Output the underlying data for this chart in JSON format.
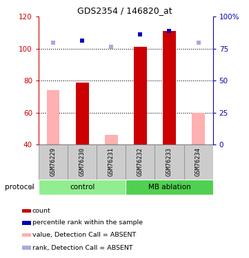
{
  "title": "GDS2354 / 146820_at",
  "samples": [
    "GSM76229",
    "GSM76230",
    "GSM76231",
    "GSM76232",
    "GSM76233",
    "GSM76234"
  ],
  "ylim_left": [
    40,
    120
  ],
  "ylim_right": [
    0,
    100
  ],
  "yticks_left": [
    40,
    60,
    80,
    100,
    120
  ],
  "yticks_right": [
    0,
    25,
    50,
    75,
    100
  ],
  "yticklabels_right": [
    "0",
    "25",
    "50",
    "75",
    "100%"
  ],
  "bar_base": 40,
  "red_bar_tops": [
    null,
    79,
    null,
    101,
    111,
    null
  ],
  "pink_bar_tops": [
    74,
    null,
    46,
    null,
    null,
    60
  ],
  "blue_square_y_left": [
    104,
    105,
    101,
    109,
    111,
    104
  ],
  "blue_square_absent": [
    true,
    false,
    true,
    false,
    false,
    true
  ],
  "protocol_groups": [
    {
      "label": "control",
      "samples": [
        0,
        1,
        2
      ],
      "color": "#90EE90"
    },
    {
      "label": "MB ablation",
      "samples": [
        3,
        4,
        5
      ],
      "color": "#50D050"
    }
  ],
  "colors": {
    "red_bar": "#CC0000",
    "pink_bar": "#FFB0B0",
    "blue_square": "#0000BB",
    "light_blue_square": "#AAAADD",
    "axis_left": "#CC0000",
    "axis_right": "#0000BB",
    "sample_box": "#CCCCCC",
    "sample_box_edge": "#888888"
  },
  "legend_items": [
    {
      "label": "count",
      "color": "#CC0000"
    },
    {
      "label": "percentile rank within the sample",
      "color": "#0000BB"
    },
    {
      "label": "value, Detection Call = ABSENT",
      "color": "#FFB0B0"
    },
    {
      "label": "rank, Detection Call = ABSENT",
      "color": "#AAAADD"
    }
  ],
  "protocol_label": "protocol"
}
